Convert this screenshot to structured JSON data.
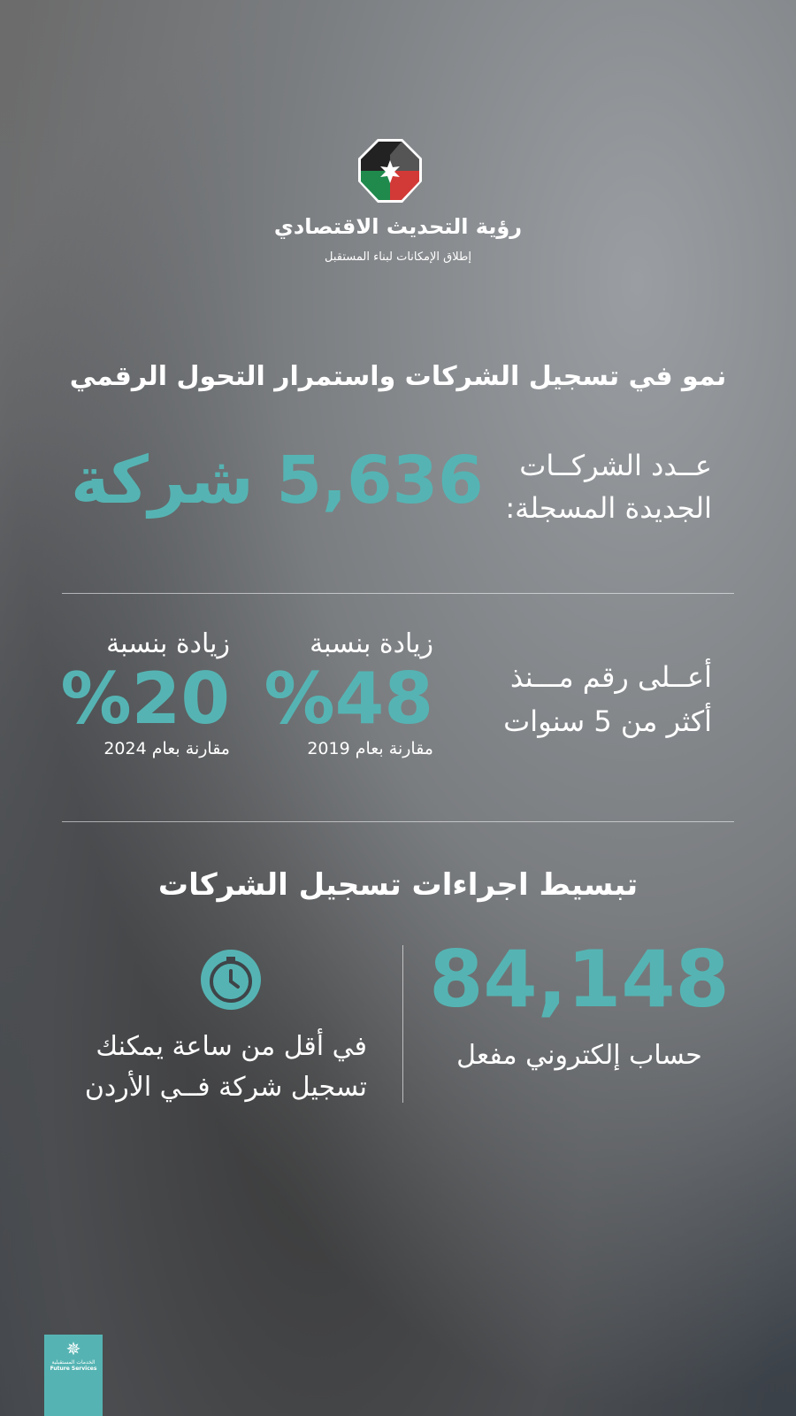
{
  "header": {
    "title": "رؤية التحديث الاقتصادي",
    "tagline": "إطلاق الإمكانات لبناء المستقبل"
  },
  "section1": {
    "heading": "نمو في تسجيل الشركات واستمرار التحول الرقمي",
    "companies_label_1": "عــدد الشركــات",
    "companies_label_2": "الجديدة المسجلة:",
    "companies_value": "5,636 شركة"
  },
  "section2": {
    "highest_1": "أعــلى رقم مـــنذ",
    "highest_2": "أكثر من 5 سنوات",
    "stats": [
      {
        "label": "زيادة بنسبة",
        "value": "%48",
        "compare": "مقارنة بعام 2019"
      },
      {
        "label": "زيادة بنسبة",
        "value": "%20",
        "compare": "مقارنة بعام 2024"
      }
    ]
  },
  "section3": {
    "heading": "تبسيط اجراءات تسجيل الشركات",
    "accounts_value": "84,148",
    "accounts_label": "حساب إلكتروني مفعل",
    "time_1": "في أقل من ساعة يمكنك",
    "time_2": "تسجيل شركة فــي الأردن",
    "icon": "clock-icon"
  },
  "footer": {
    "logo_ar": "الخدمات المستقبلية",
    "logo_en": "Future Services"
  },
  "colors": {
    "accent": "#55b4b3"
  }
}
